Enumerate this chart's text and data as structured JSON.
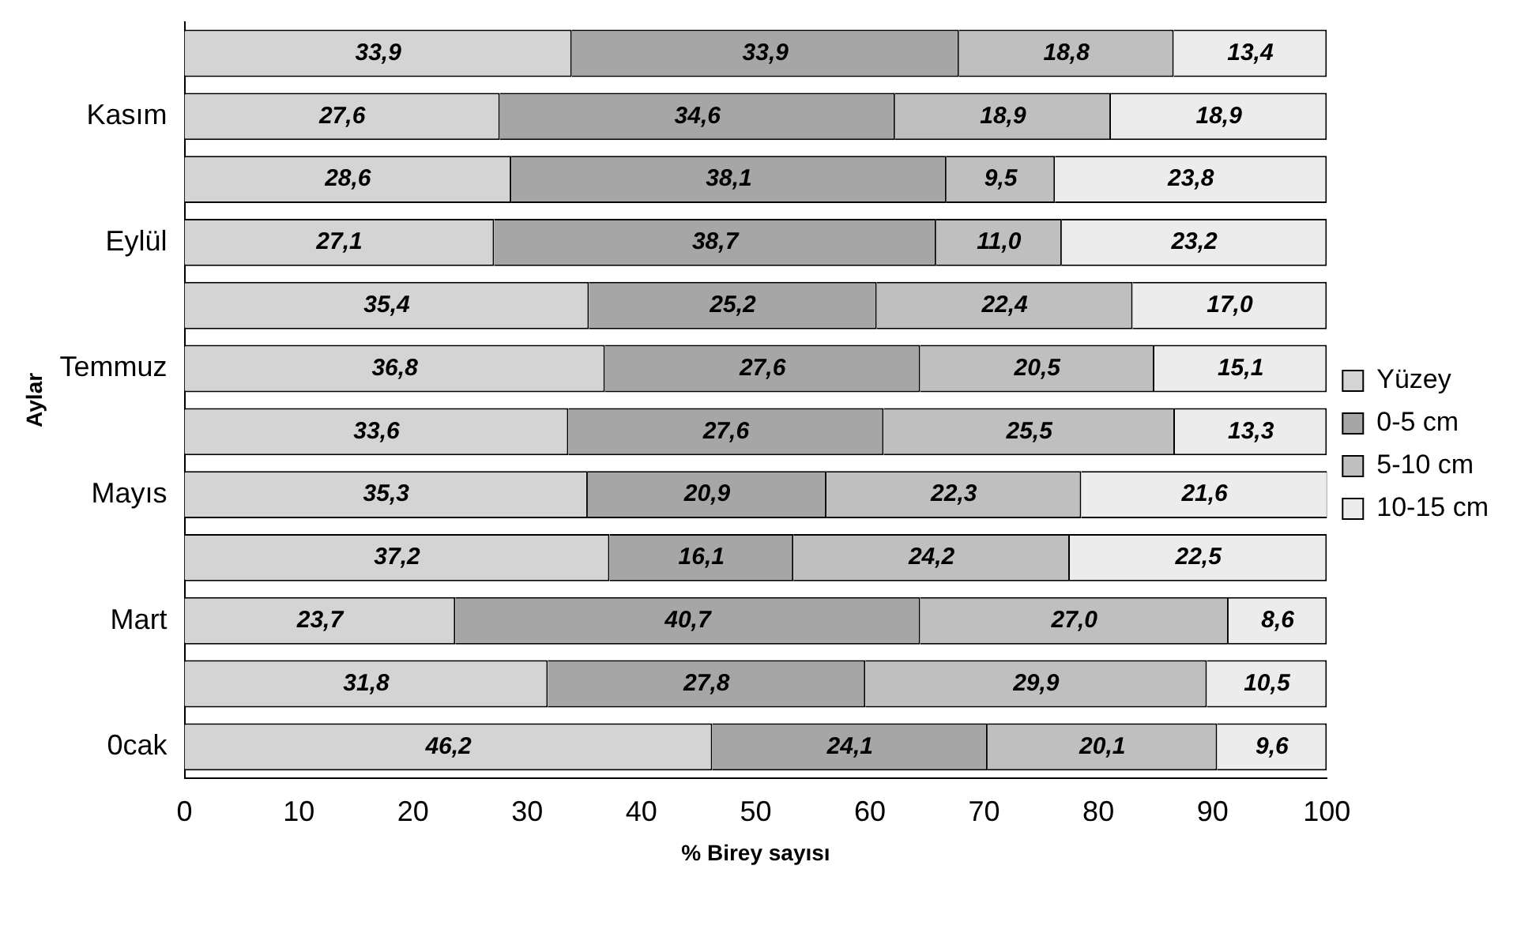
{
  "chart_data": {
    "type": "bar",
    "orientation": "horizontal",
    "stacked": true,
    "xlabel": "% Birey sayısı",
    "ylabel": "Aylar",
    "categories": [
      null,
      "Kasım",
      null,
      "Eylül",
      null,
      "Temmuz",
      null,
      "Mayıs",
      null,
      "Mart",
      null,
      "0cak"
    ],
    "xlim": [
      0,
      100
    ],
    "xticks": [
      0,
      10,
      20,
      30,
      40,
      50,
      60,
      70,
      80,
      90,
      100
    ],
    "grid": false,
    "legend": "right",
    "series": [
      {
        "name": "Yüzey",
        "color": "#d4d4d4",
        "values": [
          33.9,
          27.6,
          28.6,
          27.1,
          35.4,
          36.8,
          33.6,
          35.3,
          37.2,
          23.7,
          31.8,
          46.2
        ],
        "value_labels": [
          "33,9",
          "27,6",
          "28,6",
          "27,1",
          "35,4",
          "36,8",
          "33,6",
          "35,3",
          "37,2",
          "23,7",
          "31,8",
          "46,2"
        ]
      },
      {
        "name": "0-5 cm",
        "color": "#a6a6a6",
        "values": [
          33.9,
          34.6,
          38.1,
          38.7,
          25.2,
          27.6,
          27.6,
          20.9,
          16.1,
          40.7,
          27.8,
          24.1
        ],
        "value_labels": [
          "33,9",
          "34,6",
          "38,1",
          "38,7",
          "25,2",
          "27,6",
          "27,6",
          "20,9",
          "16,1",
          "40,7",
          "27,8",
          "24,1"
        ]
      },
      {
        "name": "5-10 cm",
        "color": "#bfbfbf",
        "values": [
          18.8,
          18.9,
          9.5,
          11.0,
          22.4,
          20.5,
          25.5,
          22.3,
          24.2,
          27.0,
          29.9,
          20.1
        ],
        "value_labels": [
          "18,8",
          "18,9",
          "9,5",
          "11,0",
          "22,4",
          "20,5",
          "25,5",
          "22,3",
          "24,2",
          "27,0",
          "29,9",
          "20,1"
        ]
      },
      {
        "name": "10-15 cm",
        "color": "#ececec",
        "values": [
          13.4,
          18.9,
          23.8,
          23.2,
          17.0,
          15.1,
          13.3,
          21.6,
          22.5,
          8.6,
          10.5,
          9.6
        ],
        "value_labels": [
          "13,4",
          "18,9",
          "23,8",
          "23,2",
          "17,0",
          "15,1",
          "13,3",
          "21,6",
          "22,5",
          "8,6",
          "10,5",
          "9,6"
        ]
      }
    ]
  }
}
